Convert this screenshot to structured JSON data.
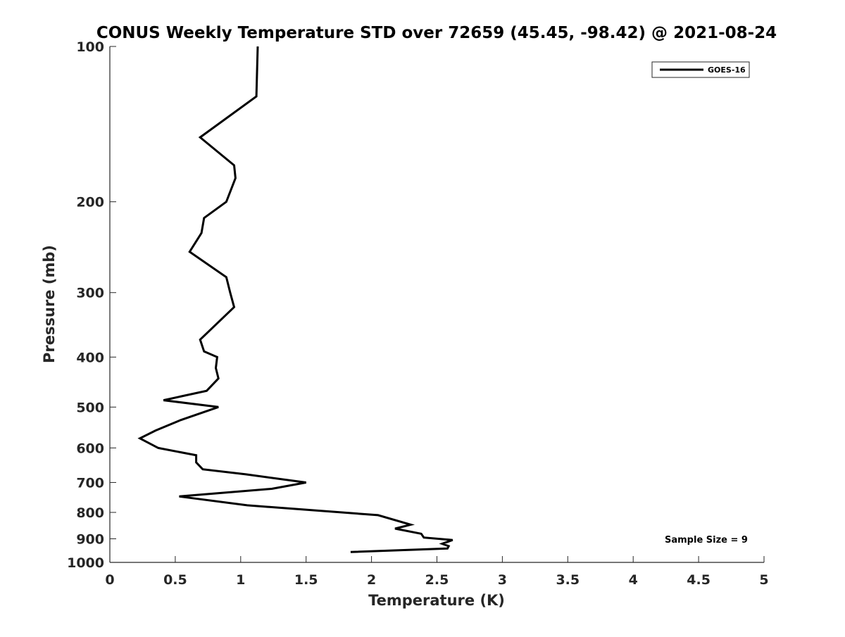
{
  "chart_data": {
    "type": "line",
    "title": "CONUS Weekly Temperature STD over 72659 (45.45, -98.42) @ 2021-08-24",
    "xlabel": "Temperature (K)",
    "ylabel": "Pressure (mb)",
    "xlim": [
      0,
      5
    ],
    "ylim": [
      100,
      1000
    ],
    "y_scale": "log",
    "y_reversed": true,
    "xticks": [
      0,
      0.5,
      1,
      1.5,
      2,
      2.5,
      3,
      3.5,
      4,
      4.5,
      5
    ],
    "xtick_labels": [
      "0",
      "0.5",
      "1",
      "1.5",
      "2",
      "2.5",
      "3",
      "3.5",
      "4",
      "4.5",
      "5"
    ],
    "yticks": [
      100,
      200,
      300,
      400,
      500,
      600,
      700,
      800,
      900,
      1000
    ],
    "ytick_labels": [
      "100",
      "200",
      "300",
      "400",
      "500",
      "600",
      "700",
      "800",
      "900",
      "1000"
    ],
    "grid": false,
    "legend_position": "top-right",
    "annotation": "Sample Size = 9",
    "series": [
      {
        "name": "GOES-16",
        "color": "#000000",
        "points": [
          [
            1.13,
            100
          ],
          [
            1.12,
            125
          ],
          [
            0.69,
            150
          ],
          [
            0.95,
            170
          ],
          [
            0.96,
            180
          ],
          [
            0.89,
            200
          ],
          [
            0.72,
            215
          ],
          [
            0.7,
            230
          ],
          [
            0.61,
            250
          ],
          [
            0.89,
            280
          ],
          [
            0.92,
            300
          ],
          [
            0.95,
            320
          ],
          [
            0.69,
            370
          ],
          [
            0.72,
            390
          ],
          [
            0.82,
            400
          ],
          [
            0.81,
            420
          ],
          [
            0.83,
            440
          ],
          [
            0.74,
            465
          ],
          [
            0.41,
            485
          ],
          [
            0.83,
            500
          ],
          [
            0.54,
            530
          ],
          [
            0.35,
            555
          ],
          [
            0.23,
            575
          ],
          [
            0.37,
            600
          ],
          [
            0.66,
            620
          ],
          [
            0.66,
            640
          ],
          [
            0.71,
            660
          ],
          [
            1.04,
            675
          ],
          [
            1.5,
            700
          ],
          [
            1.24,
            720
          ],
          [
            0.53,
            745
          ],
          [
            1.05,
            775
          ],
          [
            2.05,
            810
          ],
          [
            2.3,
            845
          ],
          [
            2.18,
            860
          ],
          [
            2.38,
            880
          ],
          [
            2.4,
            895
          ],
          [
            2.62,
            905
          ],
          [
            2.54,
            920
          ],
          [
            2.59,
            930
          ],
          [
            2.58,
            940
          ],
          [
            1.84,
            955
          ]
        ]
      }
    ]
  }
}
